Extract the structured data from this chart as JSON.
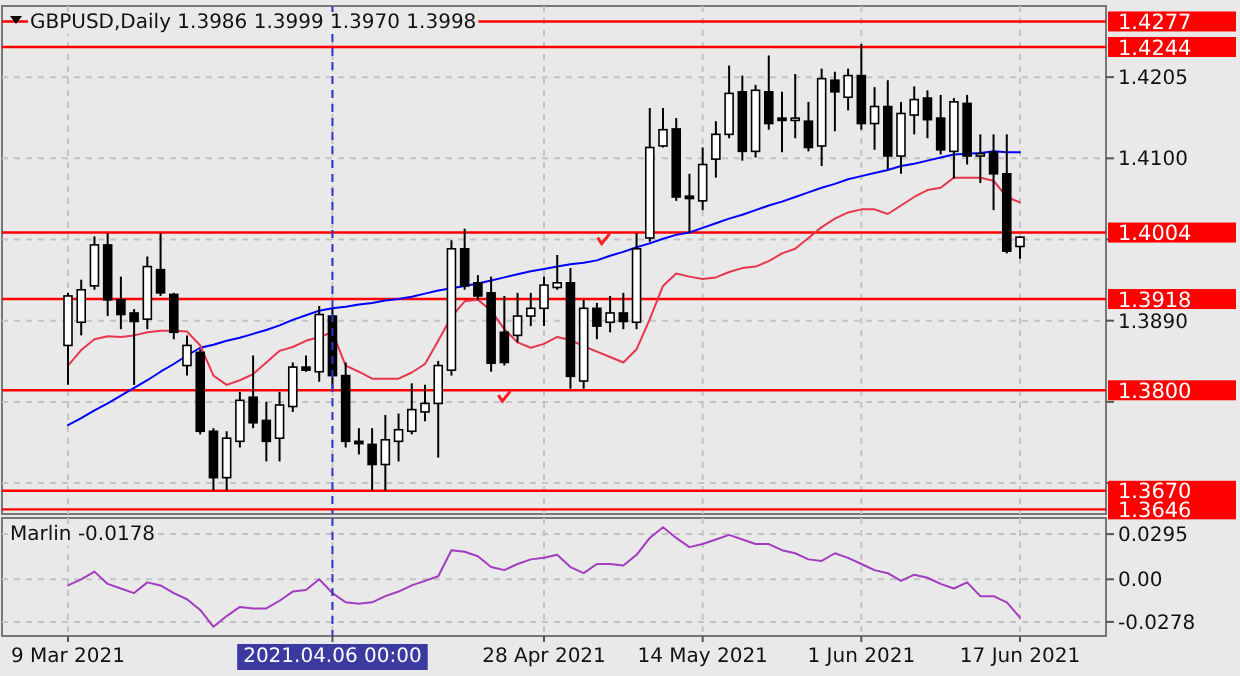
{
  "chart_data": [
    {
      "type": "candlestick",
      "title": "GBPUSD,Daily  1.3986 1.3999 1.3970 1.3998",
      "categories": [
        "9 Mar 2021",
        null,
        null,
        null,
        null,
        null,
        null,
        null,
        null,
        null,
        null,
        null,
        null,
        null,
        null,
        null,
        null,
        null,
        null,
        null,
        "2021.04.06 00:00",
        null,
        null,
        null,
        null,
        null,
        null,
        null,
        null,
        null,
        null,
        null,
        null,
        null,
        null,
        null,
        "28 Apr 2021",
        null,
        null,
        null,
        null,
        null,
        null,
        null,
        null,
        null,
        null,
        null,
        "14 May 2021",
        null,
        null,
        null,
        null,
        null,
        null,
        null,
        null,
        null,
        null,
        null,
        "1 Jun 2021",
        null,
        null,
        null,
        null,
        null,
        null,
        null,
        null,
        null,
        null,
        null,
        "17 Jun 2021"
      ],
      "ohlc": [
        [
          1.3858,
          1.3926,
          1.3807,
          1.3922
        ],
        [
          1.3888,
          1.3943,
          1.3871,
          1.393
        ],
        [
          1.3935,
          1.3999,
          1.393,
          1.3988
        ],
        [
          1.3988,
          1.4003,
          1.3896,
          1.3917
        ],
        [
          1.3917,
          1.3947,
          1.3879,
          1.3898
        ],
        [
          1.39,
          1.3905,
          1.3807,
          1.3889
        ],
        [
          1.3892,
          1.3973,
          1.3879,
          1.396
        ],
        [
          1.3956,
          1.4003,
          1.3922,
          1.3926
        ],
        [
          1.3924,
          1.3926,
          1.3866,
          1.3875
        ],
        [
          1.3832,
          1.3871,
          1.3819,
          1.3858
        ],
        [
          1.3849,
          1.3853,
          1.3743,
          1.3747
        ],
        [
          1.3747,
          1.3751,
          1.367,
          1.3687
        ],
        [
          1.3687,
          1.3747,
          1.367,
          1.3738
        ],
        [
          1.3734,
          1.3798,
          1.3726,
          1.3787
        ],
        [
          1.3791,
          1.3845,
          1.3751,
          1.3758
        ],
        [
          1.3761,
          1.3785,
          1.3708,
          1.3734
        ],
        [
          1.3738,
          1.3798,
          1.3708,
          1.3781
        ],
        [
          1.3779,
          1.3836,
          1.3772,
          1.383
        ],
        [
          1.383,
          1.3845,
          1.3824,
          1.3826
        ],
        [
          1.3824,
          1.3909,
          1.3811,
          1.3898
        ],
        [
          1.3896,
          1.3905,
          1.3802,
          1.3819
        ],
        [
          1.3819,
          1.3836,
          1.3726,
          1.3734
        ],
        [
          1.3734,
          1.3751,
          1.3717,
          1.3731
        ],
        [
          1.373,
          1.3751,
          1.367,
          1.3704
        ],
        [
          1.3704,
          1.3768,
          1.367,
          1.3736
        ],
        [
          1.3734,
          1.377,
          1.3708,
          1.3749
        ],
        [
          1.3747,
          1.3809,
          1.3743,
          1.3775
        ],
        [
          1.3772,
          1.3807,
          1.376,
          1.3783
        ],
        [
          1.3783,
          1.3838,
          1.3713,
          1.3832
        ],
        [
          1.3826,
          1.3994,
          1.3819,
          1.3983
        ],
        [
          1.3983,
          1.4009,
          1.393,
          1.3935
        ],
        [
          1.3939,
          1.3949,
          1.3917,
          1.3922
        ],
        [
          1.3926,
          1.3947,
          1.3824,
          1.3835
        ],
        [
          1.3875,
          1.3922,
          1.3832,
          1.3836
        ],
        [
          1.3871,
          1.3926,
          1.3862,
          1.3896
        ],
        [
          1.3896,
          1.3926,
          1.3883,
          1.3906
        ],
        [
          1.3906,
          1.3947,
          1.3883,
          1.3936
        ],
        [
          1.3933,
          1.3975,
          1.393,
          1.3939
        ],
        [
          1.3939,
          1.3958,
          1.3802,
          1.3818
        ],
        [
          1.3812,
          1.3917,
          1.3802,
          1.3906
        ],
        [
          1.3906,
          1.3913,
          1.3866,
          1.3883
        ],
        [
          1.3888,
          1.3922,
          1.3875,
          1.39
        ],
        [
          1.39,
          1.3926,
          1.3879,
          1.3889
        ],
        [
          1.3888,
          1.4003,
          1.3879,
          1.3983
        ],
        [
          1.3997,
          1.4165,
          1.3992,
          1.4114
        ],
        [
          1.4116,
          1.4165,
          1.4114,
          1.4137
        ],
        [
          1.4138,
          1.4152,
          1.4045,
          1.405
        ],
        [
          1.4051,
          1.408,
          1.4004,
          1.4048
        ],
        [
          1.4045,
          1.4114,
          1.4033,
          1.4092
        ],
        [
          1.4099,
          1.4148,
          1.4075,
          1.4131
        ],
        [
          1.4131,
          1.422,
          1.4126,
          1.4184
        ],
        [
          1.4186,
          1.4207,
          1.4097,
          1.4109
        ],
        [
          1.4109,
          1.4195,
          1.4101,
          1.4188
        ],
        [
          1.4186,
          1.4233,
          1.4137,
          1.4145
        ],
        [
          1.4152,
          1.4186,
          1.4108,
          1.4149
        ],
        [
          1.4149,
          1.4209,
          1.4126,
          1.4152
        ],
        [
          1.4148,
          1.4173,
          1.4109,
          1.4114
        ],
        [
          1.4116,
          1.4216,
          1.409,
          1.4203
        ],
        [
          1.4201,
          1.4212,
          1.4135,
          1.4186
        ],
        [
          1.4179,
          1.4216,
          1.4162,
          1.4207
        ],
        [
          1.4207,
          1.4248,
          1.4137,
          1.4145
        ],
        [
          1.4145,
          1.4192,
          1.4111,
          1.4167
        ],
        [
          1.4167,
          1.4201,
          1.4086,
          1.4103
        ],
        [
          1.4103,
          1.4173,
          1.408,
          1.4158
        ],
        [
          1.4156,
          1.4193,
          1.4131,
          1.4176
        ],
        [
          1.4178,
          1.4188,
          1.4126,
          1.415
        ],
        [
          1.4152,
          1.4182,
          1.4105,
          1.4111
        ],
        [
          1.4109,
          1.4178,
          1.4074,
          1.4173
        ],
        [
          1.4171,
          1.4182,
          1.4092,
          1.4103
        ],
        [
          1.4103,
          1.4131,
          1.4068,
          1.4106
        ],
        [
          1.4108,
          1.4131,
          1.4033,
          1.408
        ],
        [
          1.408,
          1.4131,
          1.3977,
          1.398
        ],
        [
          1.3986,
          1.3999,
          1.397,
          1.3998
        ]
      ],
      "series": [
        {
          "type": "line",
          "color": "#0000ff",
          "values": [
            1.3755,
            1.3764,
            1.3774,
            1.3783,
            1.3793,
            1.3803,
            1.3813,
            1.3824,
            1.3834,
            1.3845,
            1.3855,
            1.3859,
            1.3864,
            1.3868,
            1.3873,
            1.3878,
            1.3884,
            1.3891,
            1.3897,
            1.3903,
            1.3906,
            1.3908,
            1.3911,
            1.3913,
            1.3916,
            1.3918,
            1.3921,
            1.3925,
            1.3929,
            1.3932,
            1.3935,
            1.3938,
            1.3942,
            1.3946,
            1.395,
            1.3954,
            1.3957,
            1.396,
            1.3963,
            1.3965,
            1.3968,
            1.3974,
            1.3979,
            1.3985,
            1.399,
            1.3996,
            1.4001,
            1.4004,
            1.401,
            1.4016,
            1.4022,
            1.4027,
            1.4033,
            1.4039,
            1.4044,
            1.405,
            1.4056,
            1.4062,
            1.4067,
            1.4073,
            1.4077,
            1.4081,
            1.4085,
            1.409,
            1.4093,
            1.4097,
            1.4101,
            1.4105,
            1.4106,
            1.4107,
            1.4109,
            1.4108,
            1.4108
          ]
        },
        {
          "type": "line",
          "color": "#e8364f",
          "values": [
            1.3832,
            1.3852,
            1.3866,
            1.387,
            1.3869,
            1.3871,
            1.3875,
            1.3877,
            1.3877,
            1.3876,
            1.3858,
            1.3819,
            1.3807,
            1.3813,
            1.3821,
            1.3836,
            1.3851,
            1.3856,
            1.3864,
            1.3869,
            1.3875,
            1.3832,
            1.3824,
            1.3815,
            1.3815,
            1.3815,
            1.3823,
            1.3834,
            1.3864,
            1.3895,
            1.3915,
            1.3917,
            1.3903,
            1.3879,
            1.3862,
            1.3855,
            1.386,
            1.3869,
            1.3865,
            1.3857,
            1.385,
            1.3843,
            1.3836,
            1.3853,
            1.3892,
            1.3935,
            1.3951,
            1.3947,
            1.3944,
            1.3946,
            1.3953,
            1.3958,
            1.396,
            1.3967,
            1.3977,
            1.3983,
            1.3997,
            1.4011,
            1.4022,
            1.403,
            1.4034,
            1.4034,
            1.4028,
            1.4039,
            1.405,
            1.4059,
            1.4062,
            1.4075,
            1.4075,
            1.4075,
            1.4071,
            1.405,
            1.4043
          ]
        }
      ],
      "ylim": [
        1.364,
        1.4297
      ],
      "yticks": [
        {
          "value": 1.368,
          "label": null
        },
        {
          "value": 1.3785,
          "label": null
        },
        {
          "value": 1.389,
          "label": "1.3890"
        },
        {
          "value": 1.3995,
          "label": null
        },
        {
          "value": 1.41,
          "label": "1.4100"
        },
        1.4205
      ],
      "ref_lines": [
        {
          "axis": "y",
          "value": 1.4277,
          "label": "1.4277",
          "color": "#ff0000"
        },
        {
          "axis": "y",
          "value": 1.4244,
          "label": "1.4244",
          "color": "#ff0000"
        },
        {
          "axis": "y",
          "value": 1.4004,
          "label": "1.4004",
          "color": "#ff0000"
        },
        {
          "axis": "y",
          "value": 1.3918,
          "label": "1.3918",
          "color": "#ff0000"
        },
        {
          "axis": "y",
          "value": 1.38,
          "label": "1.3800",
          "color": "#ff0000"
        },
        {
          "axis": "y",
          "value": 1.367,
          "label": "1.3670",
          "color": "#ff0000"
        },
        {
          "axis": "y",
          "value": 1.3646,
          "label": "1.3646",
          "color": "#ff0000"
        },
        {
          "axis": "x",
          "value": "2021.04.06 00:00",
          "color": "#3232c8",
          "line_style": "dashed"
        }
      ],
      "grid": true,
      "tick_labels": "y"
    },
    {
      "type": "line",
      "title": "Marlin -0.0178",
      "categories": [
        "9 Mar 2021",
        null,
        null,
        null,
        null,
        null,
        null,
        null,
        null,
        null,
        null,
        null,
        null,
        null,
        null,
        null,
        null,
        null,
        null,
        null,
        "2021.04.06 00:00",
        null,
        null,
        null,
        null,
        null,
        null,
        null,
        null,
        null,
        null,
        null,
        null,
        null,
        null,
        null,
        "28 Apr 2021",
        null,
        null,
        null,
        null,
        null,
        null,
        null,
        null,
        null,
        null,
        null,
        "14 May 2021",
        null,
        null,
        null,
        null,
        null,
        null,
        null,
        null,
        null,
        null,
        null,
        "1 Jun 2021",
        null,
        null,
        null,
        null,
        null,
        null,
        null,
        null,
        null,
        null,
        null,
        "17 Jun 2021"
      ],
      "series": [
        {
          "color": "#a23cc0",
          "values": [
            -0.004,
            0.0,
            0.005,
            -0.003,
            -0.006,
            -0.009,
            -0.002,
            -0.004,
            -0.009,
            -0.013,
            -0.02,
            -0.031,
            -0.024,
            -0.018,
            -0.019,
            -0.019,
            -0.014,
            -0.008,
            -0.007,
            0.0,
            -0.009,
            -0.015,
            -0.016,
            -0.015,
            -0.011,
            -0.008,
            -0.004,
            -0.001,
            0.002,
            0.019,
            0.018,
            0.015,
            0.008,
            0.006,
            0.01,
            0.013,
            0.014,
            0.016,
            0.008,
            0.004,
            0.01,
            0.01,
            0.009,
            0.016,
            0.027,
            0.034,
            0.027,
            0.021,
            0.023,
            0.026,
            0.029,
            0.026,
            0.023,
            0.023,
            0.019,
            0.017,
            0.013,
            0.012,
            0.017,
            0.014,
            0.01,
            0.006,
            0.004,
            -0.001,
            0.003,
            0.001,
            -0.003,
            -0.006,
            -0.002,
            -0.011,
            -0.011,
            -0.015,
            -0.025
          ]
        }
      ],
      "ylim": [
        -0.037,
        0.04
      ],
      "yticks": [
        -0.0278,
        {
          "value": 0,
          "label": "0.00"
        },
        0.0295
      ],
      "ref_lines": [
        {
          "axis": "x",
          "value": "2021.04.06 00:00",
          "color": "#3232c8",
          "line_style": "dashed"
        }
      ],
      "grid": true
    }
  ]
}
